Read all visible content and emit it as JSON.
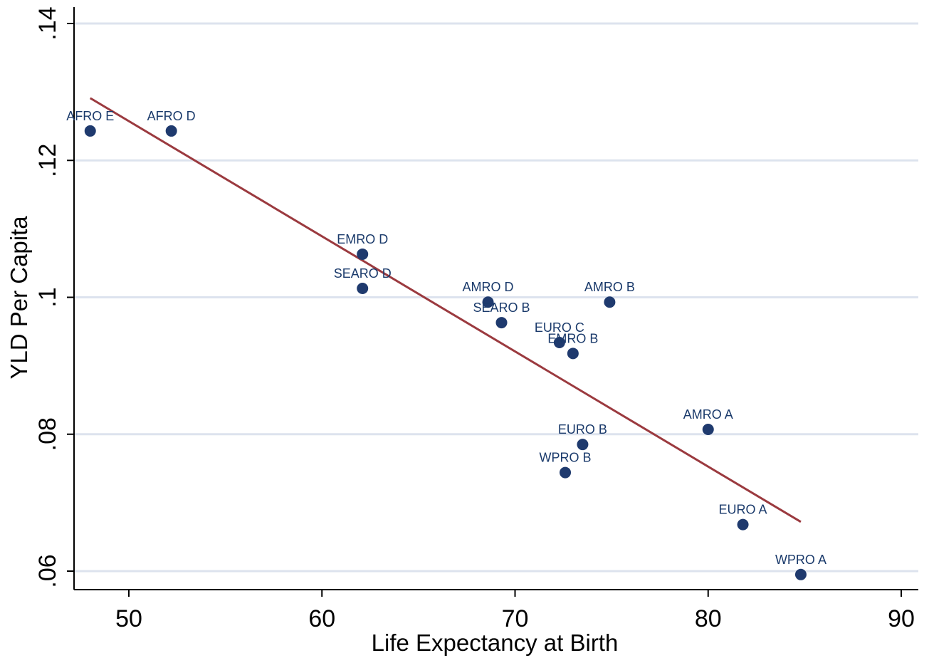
{
  "chart_data": {
    "type": "scatter",
    "title": "",
    "xlabel": "Life Expectancy at Birth",
    "ylabel": "YLD Per Capita",
    "xlim": [
      47.2,
      90.6
    ],
    "ylim": [
      0.057,
      0.142
    ],
    "x_ticks": [
      50,
      60,
      70,
      80,
      90
    ],
    "x_tick_labels": [
      "50",
      "60",
      "70",
      "80",
      "90"
    ],
    "y_ticks": [
      0.06,
      0.08,
      0.1,
      0.12,
      0.14
    ],
    "y_tick_labels": [
      ".06",
      ".08",
      ".1",
      ".12",
      ".14"
    ],
    "grid": "horizontal",
    "colors": {
      "points": "#1f3a6e",
      "fit_line": "#9b3a3f",
      "grid": "#dde3ee",
      "labels": "#1a3a6b"
    },
    "points": [
      {
        "label": "AFRO E",
        "x": 48.0,
        "y": 0.1243
      },
      {
        "label": "AFRO D",
        "x": 52.2,
        "y": 0.1243
      },
      {
        "label": "EMRO D",
        "x": 62.1,
        "y": 0.1063
      },
      {
        "label": "SEARO D",
        "x": 62.1,
        "y": 0.1013
      },
      {
        "label": "AMRO D",
        "x": 68.6,
        "y": 0.0993
      },
      {
        "label": "SEARO B",
        "x": 69.3,
        "y": 0.0963
      },
      {
        "label": "AMRO B",
        "x": 74.9,
        "y": 0.0993
      },
      {
        "label": "EURO C",
        "x": 72.3,
        "y": 0.0934
      },
      {
        "label": "EMRO B",
        "x": 73.0,
        "y": 0.0918
      },
      {
        "label": "AMRO A",
        "x": 80.0,
        "y": 0.0807
      },
      {
        "label": "EURO B",
        "x": 73.5,
        "y": 0.0785
      },
      {
        "label": "WPRO B",
        "x": 72.6,
        "y": 0.0744
      },
      {
        "label": "EURO A",
        "x": 81.8,
        "y": 0.0668
      },
      {
        "label": "WPRO A",
        "x": 84.8,
        "y": 0.0595
      }
    ],
    "fit_line": {
      "x": [
        48.0,
        84.8
      ],
      "y": [
        0.1291,
        0.0672
      ]
    }
  }
}
